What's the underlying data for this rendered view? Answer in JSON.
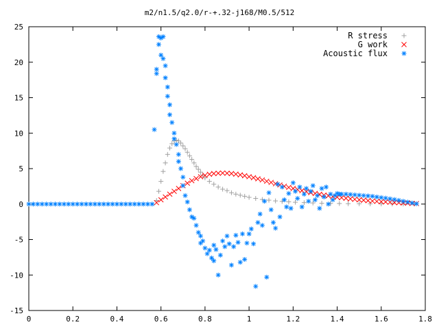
{
  "chart_data": {
    "type": "scatter",
    "title": "m2/n1.5/q2.0/r-+.32-j168/M0.5/512",
    "xlabel": "",
    "ylabel": "",
    "xlim": [
      0,
      1.8
    ],
    "ylim": [
      -15,
      25
    ],
    "x_ticks": [
      "0",
      "0.2",
      "0.4",
      "0.6",
      "0.8",
      "1",
      "1.2",
      "1.4",
      "1.6",
      "1.8"
    ],
    "y_ticks": [
      "-15",
      "-10",
      "-5",
      "0",
      "5",
      "10",
      "15",
      "20",
      "25"
    ],
    "grid": false,
    "legend_position": "top-right",
    "series": [
      {
        "name": "R stress",
        "marker": "plus",
        "color": "#a0a0a0",
        "points": [
          [
            0.58,
            0.5
          ],
          [
            0.59,
            1.8
          ],
          [
            0.6,
            3.2
          ],
          [
            0.61,
            4.6
          ],
          [
            0.62,
            5.8
          ],
          [
            0.63,
            7.0
          ],
          [
            0.64,
            7.9
          ],
          [
            0.65,
            8.5
          ],
          [
            0.66,
            8.9
          ],
          [
            0.67,
            9.0
          ],
          [
            0.68,
            8.9
          ],
          [
            0.69,
            8.6
          ],
          [
            0.7,
            8.2
          ],
          [
            0.71,
            7.8
          ],
          [
            0.72,
            7.3
          ],
          [
            0.73,
            6.8
          ],
          [
            0.74,
            6.3
          ],
          [
            0.75,
            5.8
          ],
          [
            0.76,
            5.3
          ],
          [
            0.77,
            4.9
          ],
          [
            0.78,
            4.5
          ],
          [
            0.79,
            4.1
          ],
          [
            0.8,
            3.7
          ],
          [
            0.82,
            3.2
          ],
          [
            0.84,
            2.8
          ],
          [
            0.86,
            2.4
          ],
          [
            0.88,
            2.1
          ],
          [
            0.9,
            1.9
          ],
          [
            0.92,
            1.6
          ],
          [
            0.94,
            1.4
          ],
          [
            0.96,
            1.25
          ],
          [
            0.98,
            1.1
          ],
          [
            1.0,
            0.95
          ],
          [
            1.03,
            0.8
          ],
          [
            1.06,
            0.65
          ],
          [
            1.09,
            0.55
          ],
          [
            1.12,
            0.45
          ],
          [
            1.15,
            0.38
          ],
          [
            1.18,
            0.32
          ],
          [
            1.21,
            0.26
          ],
          [
            1.25,
            0.2
          ],
          [
            1.29,
            0.16
          ],
          [
            1.33,
            0.12
          ],
          [
            1.37,
            0.1
          ],
          [
            1.41,
            0.08
          ],
          [
            1.45,
            0.06
          ],
          [
            1.5,
            0.05
          ],
          [
            1.55,
            0.04
          ],
          [
            1.6,
            0.03
          ],
          [
            1.65,
            0.02
          ],
          [
            1.7,
            0.02
          ],
          [
            1.75,
            0.01
          ]
        ]
      },
      {
        "name": "G work",
        "marker": "cross",
        "color": "#ff0000",
        "points": [
          [
            0.58,
            0.2
          ],
          [
            0.6,
            0.6
          ],
          [
            0.62,
            1.0
          ],
          [
            0.64,
            1.4
          ],
          [
            0.66,
            1.8
          ],
          [
            0.68,
            2.2
          ],
          [
            0.7,
            2.6
          ],
          [
            0.72,
            2.95
          ],
          [
            0.74,
            3.3
          ],
          [
            0.76,
            3.6
          ],
          [
            0.78,
            3.85
          ],
          [
            0.8,
            4.05
          ],
          [
            0.82,
            4.2
          ],
          [
            0.84,
            4.3
          ],
          [
            0.86,
            4.35
          ],
          [
            0.88,
            4.38
          ],
          [
            0.9,
            4.35
          ],
          [
            0.92,
            4.3
          ],
          [
            0.94,
            4.22
          ],
          [
            0.96,
            4.12
          ],
          [
            0.98,
            4.0
          ],
          [
            1.0,
            3.86
          ],
          [
            1.02,
            3.72
          ],
          [
            1.04,
            3.56
          ],
          [
            1.06,
            3.4
          ],
          [
            1.08,
            3.22
          ],
          [
            1.1,
            3.05
          ],
          [
            1.12,
            2.87
          ],
          [
            1.14,
            2.7
          ],
          [
            1.16,
            2.52
          ],
          [
            1.18,
            2.35
          ],
          [
            1.2,
            2.2
          ],
          [
            1.22,
            2.05
          ],
          [
            1.24,
            1.9
          ],
          [
            1.26,
            1.75
          ],
          [
            1.28,
            1.62
          ],
          [
            1.3,
            1.5
          ],
          [
            1.32,
            1.38
          ],
          [
            1.34,
            1.27
          ],
          [
            1.36,
            1.17
          ],
          [
            1.38,
            1.07
          ],
          [
            1.4,
            0.98
          ],
          [
            1.42,
            0.9
          ],
          [
            1.44,
            0.82
          ],
          [
            1.46,
            0.74
          ],
          [
            1.48,
            0.67
          ],
          [
            1.5,
            0.6
          ],
          [
            1.52,
            0.54
          ],
          [
            1.54,
            0.48
          ],
          [
            1.56,
            0.43
          ],
          [
            1.58,
            0.38
          ],
          [
            1.6,
            0.34
          ],
          [
            1.62,
            0.3
          ],
          [
            1.64,
            0.26
          ],
          [
            1.66,
            0.22
          ],
          [
            1.68,
            0.19
          ],
          [
            1.7,
            0.16
          ],
          [
            1.72,
            0.13
          ],
          [
            1.74,
            0.1
          ],
          [
            1.76,
            0.08
          ]
        ]
      },
      {
        "name": "Acoustic flux",
        "marker": "star",
        "color": "#0080ff",
        "points": [
          [
            0.0,
            0
          ],
          [
            0.02,
            0
          ],
          [
            0.04,
            0
          ],
          [
            0.06,
            0
          ],
          [
            0.08,
            0
          ],
          [
            0.1,
            0
          ],
          [
            0.12,
            0
          ],
          [
            0.14,
            0
          ],
          [
            0.16,
            0
          ],
          [
            0.18,
            0
          ],
          [
            0.2,
            0
          ],
          [
            0.22,
            0
          ],
          [
            0.24,
            0
          ],
          [
            0.26,
            0
          ],
          [
            0.28,
            0
          ],
          [
            0.3,
            0
          ],
          [
            0.32,
            0
          ],
          [
            0.34,
            0
          ],
          [
            0.36,
            0
          ],
          [
            0.38,
            0
          ],
          [
            0.4,
            0
          ],
          [
            0.42,
            0
          ],
          [
            0.44,
            0
          ],
          [
            0.46,
            0
          ],
          [
            0.48,
            0
          ],
          [
            0.5,
            0
          ],
          [
            0.52,
            0
          ],
          [
            0.54,
            0
          ],
          [
            0.56,
            0
          ],
          [
            0.57,
            10.5
          ],
          [
            0.58,
            19.0
          ],
          [
            0.58,
            18.4
          ],
          [
            0.59,
            22.5
          ],
          [
            0.59,
            23.6
          ],
          [
            0.6,
            23.4
          ],
          [
            0.6,
            21.0
          ],
          [
            0.61,
            23.6
          ],
          [
            0.61,
            20.5
          ],
          [
            0.62,
            19.5
          ],
          [
            0.62,
            17.8
          ],
          [
            0.63,
            16.5
          ],
          [
            0.63,
            15.2
          ],
          [
            0.64,
            14.0
          ],
          [
            0.64,
            12.6
          ],
          [
            0.65,
            11.5
          ],
          [
            0.66,
            10.0
          ],
          [
            0.66,
            9.2
          ],
          [
            0.67,
            8.4
          ],
          [
            0.68,
            7.0
          ],
          [
            0.68,
            6.0
          ],
          [
            0.69,
            5.0
          ],
          [
            0.7,
            3.8
          ],
          [
            0.7,
            2.6
          ],
          [
            0.71,
            1.2
          ],
          [
            0.72,
            0.3
          ],
          [
            0.73,
            -0.8
          ],
          [
            0.74,
            -1.8
          ],
          [
            0.75,
            -2.0
          ],
          [
            0.76,
            -3.0
          ],
          [
            0.77,
            -4.0
          ],
          [
            0.78,
            -4.5
          ],
          [
            0.78,
            -5.5
          ],
          [
            0.79,
            -5.2
          ],
          [
            0.8,
            -6.2
          ],
          [
            0.81,
            -7.0
          ],
          [
            0.82,
            -6.5
          ],
          [
            0.83,
            -7.6
          ],
          [
            0.84,
            -5.8
          ],
          [
            0.84,
            -8.0
          ],
          [
            0.85,
            -6.4
          ],
          [
            0.86,
            -10.0
          ],
          [
            0.87,
            -7.2
          ],
          [
            0.88,
            -5.2
          ],
          [
            0.89,
            -6.0
          ],
          [
            0.9,
            -4.5
          ],
          [
            0.91,
            -5.6
          ],
          [
            0.92,
            -8.6
          ],
          [
            0.93,
            -6.0
          ],
          [
            0.94,
            -4.4
          ],
          [
            0.95,
            -5.4
          ],
          [
            0.96,
            -8.2
          ],
          [
            0.97,
            -4.2
          ],
          [
            0.98,
            -7.8
          ],
          [
            0.99,
            -5.5
          ],
          [
            1.0,
            -4.2
          ],
          [
            1.01,
            -3.5
          ],
          [
            1.02,
            -5.6
          ],
          [
            1.03,
            -11.6
          ],
          [
            1.04,
            -2.6
          ],
          [
            1.05,
            -1.4
          ],
          [
            1.06,
            -3.0
          ],
          [
            1.07,
            0.4
          ],
          [
            1.08,
            -10.3
          ],
          [
            1.09,
            1.6
          ],
          [
            1.1,
            -0.8
          ],
          [
            1.11,
            -2.6
          ],
          [
            1.12,
            -3.4
          ],
          [
            1.13,
            2.8
          ],
          [
            1.14,
            -1.8
          ],
          [
            1.15,
            2.4
          ],
          [
            1.16,
            0.6
          ],
          [
            1.17,
            -0.4
          ],
          [
            1.18,
            1.5
          ],
          [
            1.19,
            -0.6
          ],
          [
            1.2,
            3.0
          ],
          [
            1.21,
            1.8
          ],
          [
            1.22,
            0.8
          ],
          [
            1.23,
            2.4
          ],
          [
            1.24,
            -0.4
          ],
          [
            1.25,
            1.4
          ],
          [
            1.26,
            2.2
          ],
          [
            1.27,
            0.4
          ],
          [
            1.28,
            1.8
          ],
          [
            1.29,
            2.6
          ],
          [
            1.3,
            0.6
          ],
          [
            1.31,
            1.2
          ],
          [
            1.32,
            -0.6
          ],
          [
            1.33,
            2.2
          ],
          [
            1.34,
            1.0
          ],
          [
            1.35,
            2.4
          ],
          [
            1.36,
            0.0
          ],
          [
            1.37,
            1.4
          ],
          [
            1.38,
            0.6
          ],
          [
            1.39,
            1.2
          ],
          [
            1.4,
            1.5
          ],
          [
            1.41,
            1.4
          ],
          [
            1.42,
            1.4
          ],
          [
            1.44,
            1.4
          ],
          [
            1.46,
            1.35
          ],
          [
            1.48,
            1.3
          ],
          [
            1.5,
            1.25
          ],
          [
            1.52,
            1.2
          ],
          [
            1.54,
            1.15
          ],
          [
            1.56,
            1.1
          ],
          [
            1.58,
            1.0
          ],
          [
            1.6,
            0.92
          ],
          [
            1.62,
            0.84
          ],
          [
            1.64,
            0.74
          ],
          [
            1.66,
            0.64
          ],
          [
            1.68,
            0.52
          ],
          [
            1.7,
            0.4
          ],
          [
            1.72,
            0.28
          ],
          [
            1.74,
            0.16
          ],
          [
            1.76,
            0.05
          ]
        ]
      }
    ]
  }
}
